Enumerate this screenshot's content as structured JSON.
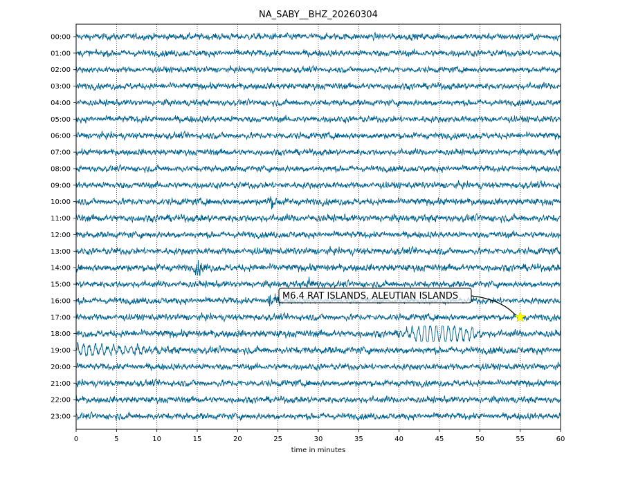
{
  "chart_data": {
    "type": "line",
    "title": "NA_SABY__BHZ_20260304",
    "xlabel": "time in minutes",
    "ylabel": "",
    "xlim": [
      0,
      60
    ],
    "xticks": [
      0,
      5,
      10,
      15,
      20,
      25,
      30,
      35,
      40,
      45,
      50,
      55,
      60
    ],
    "grid": "vertical dotted lines at each x tick",
    "trace_color": "#00628f",
    "series": [
      {
        "label": "00:00",
        "amplitude": 1.0
      },
      {
        "label": "01:00",
        "amplitude": 1.0
      },
      {
        "label": "02:00",
        "amplitude": 0.9
      },
      {
        "label": "03:00",
        "amplitude": 1.0
      },
      {
        "label": "04:00",
        "amplitude": 0.95
      },
      {
        "label": "05:00",
        "amplitude": 1.0
      },
      {
        "label": "06:00",
        "amplitude": 1.0
      },
      {
        "label": "07:00",
        "amplitude": 0.95
      },
      {
        "label": "08:00",
        "amplitude": 0.95
      },
      {
        "label": "09:00",
        "amplitude": 1.0
      },
      {
        "label": "10:00",
        "amplitude": 1.05
      },
      {
        "label": "11:00",
        "amplitude": 1.1
      },
      {
        "label": "12:00",
        "amplitude": 1.0
      },
      {
        "label": "13:00",
        "amplitude": 1.05
      },
      {
        "label": "14:00",
        "amplitude": 1.1
      },
      {
        "label": "15:00",
        "amplitude": 1.0
      },
      {
        "label": "16:00",
        "amplitude": 1.0
      },
      {
        "label": "17:00",
        "amplitude": 1.0
      },
      {
        "label": "18:00",
        "amplitude": 1.1
      },
      {
        "label": "19:00",
        "amplitude": 1.1
      },
      {
        "label": "20:00",
        "amplitude": 1.0
      },
      {
        "label": "21:00",
        "amplitude": 1.0
      },
      {
        "label": "22:00",
        "amplitude": 1.0
      },
      {
        "label": "23:00",
        "amplitude": 1.0
      }
    ],
    "events": [
      {
        "hour_index": 14,
        "minute": 15,
        "strength": 2.2
      },
      {
        "hour_index": 16,
        "minute": 24,
        "strength": 2.4
      },
      {
        "hour_index": 15,
        "minute": 29,
        "strength": 1.6
      },
      {
        "hour_index": 10,
        "minute": 24,
        "strength": 1.6
      },
      {
        "hour_index": 18,
        "minute_start": 39.5,
        "minute_end": 52.5,
        "strength": 3.2,
        "kind": "surface-wave"
      },
      {
        "hour_index": 19,
        "minute_start": 0,
        "minute_end": 13,
        "strength": 1.8,
        "kind": "coda"
      }
    ],
    "annotation": {
      "text": "M6.4 RAT ISLANDS, ALEUTIAN ISLANDS",
      "marker": "star",
      "marker_color": "#ffff00",
      "hour_index": 17,
      "minute": 55
    }
  }
}
